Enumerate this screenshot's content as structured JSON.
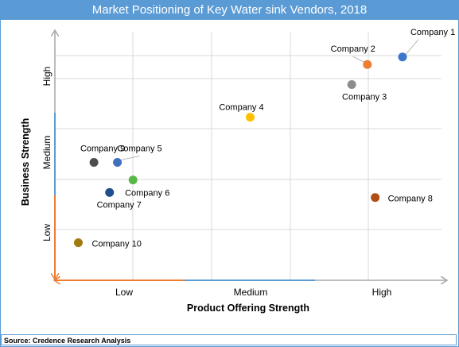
{
  "chart_data": {
    "type": "scatter",
    "title": "Market Positioning of Key Water sink Vendors, 2018",
    "xlabel": "Product Offering Strength",
    "ylabel": "Business Strength",
    "xlim": [
      0,
      10
    ],
    "ylim": [
      0,
      10
    ],
    "x_tick_labels": [
      "Low",
      "Medium",
      "High"
    ],
    "y_tick_labels": [
      "Low",
      "Medium",
      "High"
    ],
    "grid": true,
    "points": [
      {
        "label": "Company 1",
        "x": 8.9,
        "y": 8.9,
        "color": "#3b78c9"
      },
      {
        "label": "Company 2",
        "x": 8.0,
        "y": 8.6,
        "color": "#ed7d31"
      },
      {
        "label": "Company 3",
        "x": 7.6,
        "y": 7.8,
        "color": "#8c8c8c"
      },
      {
        "label": "Company 4",
        "x": 5.0,
        "y": 6.5,
        "color": "#ffc000"
      },
      {
        "label": "Company 5",
        "x": 1.6,
        "y": 4.7,
        "color": "#3f6fc0"
      },
      {
        "label": "Company 6",
        "x": 2.0,
        "y": 4.0,
        "color": "#5ab946"
      },
      {
        "label": "Company 7",
        "x": 1.4,
        "y": 3.5,
        "color": "#1f4e8c"
      },
      {
        "label": "Company 8",
        "x": 8.2,
        "y": 3.3,
        "color": "#b34d12"
      },
      {
        "label": "Company 9",
        "x": 1.0,
        "y": 4.7,
        "color": "#4d4d4d"
      },
      {
        "label": "Company 10",
        "x": 0.6,
        "y": 1.5,
        "color": "#a07a0e"
      }
    ]
  },
  "source": "Source: Credence Research Analysis",
  "colors": {
    "accent": "#5b9bd5",
    "axis_arrow_orange": "#ed7d31",
    "axis_grey": "#a6a6a6"
  }
}
